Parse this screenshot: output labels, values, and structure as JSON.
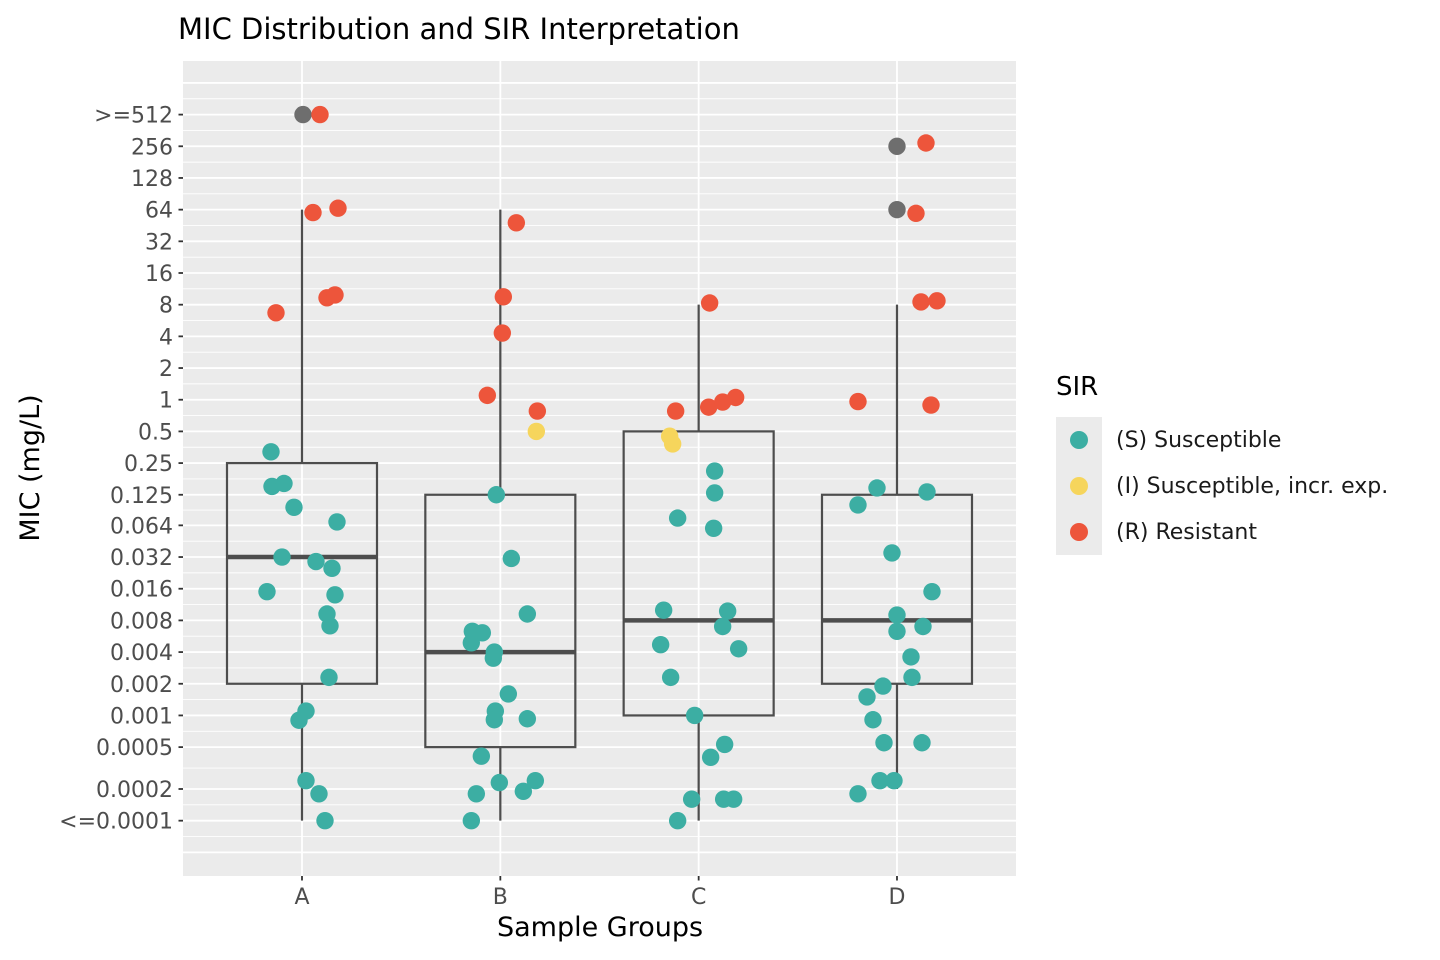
{
  "chart_data": {
    "type": "boxplot",
    "title": "MIC Distribution and SIR Interpretation",
    "xlabel": "Sample Groups",
    "ylabel": "MIC (mg/L)",
    "y_scale": "log2",
    "categories": [
      "A",
      "B",
      "C",
      "D"
    ],
    "y_ticks": [
      {
        "label": ">=512",
        "value": 512
      },
      {
        "label": "256",
        "value": 256
      },
      {
        "label": "128",
        "value": 128
      },
      {
        "label": "64",
        "value": 64
      },
      {
        "label": "32",
        "value": 32
      },
      {
        "label": "16",
        "value": 16
      },
      {
        "label": "8",
        "value": 8
      },
      {
        "label": "4",
        "value": 4
      },
      {
        "label": "2",
        "value": 2
      },
      {
        "label": "1",
        "value": 1
      },
      {
        "label": "0.5",
        "value": 0.5
      },
      {
        "label": "0.25",
        "value": 0.25
      },
      {
        "label": "0.125",
        "value": 0.125
      },
      {
        "label": "0.064",
        "value": 0.064
      },
      {
        "label": "0.032",
        "value": 0.032
      },
      {
        "label": "0.016",
        "value": 0.016
      },
      {
        "label": "0.008",
        "value": 0.008
      },
      {
        "label": "0.004",
        "value": 0.004
      },
      {
        "label": "0.002",
        "value": 0.002
      },
      {
        "label": "0.001",
        "value": 0.001
      },
      {
        "label": "0.0005",
        "value": 0.0005
      },
      {
        "label": "0.0002",
        "value": 0.0002
      },
      {
        "label": "<=0.0001",
        "value": 0.0001
      }
    ],
    "sir_colors": {
      "S": "#3CAEA3",
      "I": "#F6D55C",
      "R": "#ED553B",
      "NA": "#6E6E6E"
    },
    "style_colors": {
      "panel_bg": "#EBEBEB",
      "grid": "#FFFFFF",
      "box_stroke": "#4D4D4D",
      "axis_text": "#4D4D4D",
      "tick_mark": "#333333"
    },
    "groups": [
      {
        "name": "A",
        "box": {
          "whisker_low": 0.0001,
          "q1": 0.002,
          "median": 0.032,
          "q3": 0.25,
          "whisker_high": 64
        },
        "points": [
          {
            "mic": 512,
            "sir": "NA",
            "dx": 1
          },
          {
            "mic": 512,
            "sir": "R",
            "dx": 18
          },
          {
            "mic": 60,
            "sir": "R",
            "dx": 11
          },
          {
            "mic": 66,
            "sir": "R",
            "dx": 36
          },
          {
            "mic": 9.3,
            "sir": "R",
            "dx": 25
          },
          {
            "mic": 9.9,
            "sir": "R",
            "dx": 33
          },
          {
            "mic": 6.7,
            "sir": "R",
            "dx": -26
          },
          {
            "mic": 0.32,
            "sir": "S",
            "dx": -31
          },
          {
            "mic": 0.15,
            "sir": "S",
            "dx": -30
          },
          {
            "mic": 0.16,
            "sir": "S",
            "dx": -18
          },
          {
            "mic": 0.095,
            "sir": "S",
            "dx": -8
          },
          {
            "mic": 0.069,
            "sir": "S",
            "dx": 35
          },
          {
            "mic": 0.032,
            "sir": "S",
            "dx": -20
          },
          {
            "mic": 0.029,
            "sir": "S",
            "dx": 14
          },
          {
            "mic": 0.025,
            "sir": "S",
            "dx": 30
          },
          {
            "mic": 0.015,
            "sir": "S",
            "dx": -35
          },
          {
            "mic": 0.014,
            "sir": "S",
            "dx": 33
          },
          {
            "mic": 0.0092,
            "sir": "S",
            "dx": 25
          },
          {
            "mic": 0.0071,
            "sir": "S",
            "dx": 28
          },
          {
            "mic": 0.0023,
            "sir": "S",
            "dx": 27
          },
          {
            "mic": 0.0011,
            "sir": "S",
            "dx": 4
          },
          {
            "mic": 0.0009,
            "sir": "S",
            "dx": -3
          },
          {
            "mic": 0.00024,
            "sir": "S",
            "dx": 4
          },
          {
            "mic": 0.00018,
            "sir": "S",
            "dx": 17
          },
          {
            "mic": 0.0001,
            "sir": "S",
            "dx": 23
          }
        ]
      },
      {
        "name": "B",
        "box": {
          "whisker_low": 0.0001,
          "q1": 0.0005,
          "median": 0.004,
          "q3": 0.125,
          "whisker_high": 64
        },
        "points": [
          {
            "mic": 48,
            "sir": "R",
            "dx": 16
          },
          {
            "mic": 9.5,
            "sir": "R",
            "dx": 3
          },
          {
            "mic": 4.3,
            "sir": "R",
            "dx": 2
          },
          {
            "mic": 1.1,
            "sir": "R",
            "dx": -13
          },
          {
            "mic": 0.78,
            "sir": "R",
            "dx": 37
          },
          {
            "mic": 0.5,
            "sir": "I",
            "dx": 36
          },
          {
            "mic": 0.125,
            "sir": "S",
            "dx": -4
          },
          {
            "mic": 0.031,
            "sir": "S",
            "dx": 11
          },
          {
            "mic": 0.0092,
            "sir": "S",
            "dx": 27
          },
          {
            "mic": 0.0063,
            "sir": "S",
            "dx": -28
          },
          {
            "mic": 0.0061,
            "sir": "S",
            "dx": -18
          },
          {
            "mic": 0.0049,
            "sir": "S",
            "dx": -29
          },
          {
            "mic": 0.004,
            "sir": "S",
            "dx": -6
          },
          {
            "mic": 0.0035,
            "sir": "S",
            "dx": -7
          },
          {
            "mic": 0.0016,
            "sir": "S",
            "dx": 8
          },
          {
            "mic": 0.0011,
            "sir": "S",
            "dx": -5
          },
          {
            "mic": 0.00091,
            "sir": "S",
            "dx": -6
          },
          {
            "mic": 0.00093,
            "sir": "S",
            "dx": 27
          },
          {
            "mic": 0.00041,
            "sir": "S",
            "dx": -19
          },
          {
            "mic": 0.00023,
            "sir": "S",
            "dx": -1
          },
          {
            "mic": 0.00024,
            "sir": "S",
            "dx": 35
          },
          {
            "mic": 0.00019,
            "sir": "S",
            "dx": 23
          },
          {
            "mic": 0.00018,
            "sir": "S",
            "dx": -24
          },
          {
            "mic": 0.0001,
            "sir": "S",
            "dx": -29
          }
        ]
      },
      {
        "name": "C",
        "box": {
          "whisker_low": 0.0001,
          "q1": 0.001,
          "median": 0.008,
          "q3": 0.5,
          "whisker_high": 8
        },
        "points": [
          {
            "mic": 8.3,
            "sir": "R",
            "dx": 11
          },
          {
            "mic": 0.78,
            "sir": "R",
            "dx": -23
          },
          {
            "mic": 0.85,
            "sir": "R",
            "dx": 10
          },
          {
            "mic": 0.95,
            "sir": "R",
            "dx": 24
          },
          {
            "mic": 1.05,
            "sir": "R",
            "dx": 37
          },
          {
            "mic": 0.45,
            "sir": "I",
            "dx": -29
          },
          {
            "mic": 0.38,
            "sir": "I",
            "dx": -26
          },
          {
            "mic": 0.21,
            "sir": "S",
            "dx": 16
          },
          {
            "mic": 0.13,
            "sir": "S",
            "dx": 16
          },
          {
            "mic": 0.075,
            "sir": "S",
            "dx": -21
          },
          {
            "mic": 0.06,
            "sir": "S",
            "dx": 15
          },
          {
            "mic": 0.01,
            "sir": "S",
            "dx": -35
          },
          {
            "mic": 0.0098,
            "sir": "S",
            "dx": 29
          },
          {
            "mic": 0.007,
            "sir": "S",
            "dx": 24
          },
          {
            "mic": 0.0047,
            "sir": "S",
            "dx": -38
          },
          {
            "mic": 0.0043,
            "sir": "S",
            "dx": 40
          },
          {
            "mic": 0.0023,
            "sir": "S",
            "dx": -28
          },
          {
            "mic": 0.001,
            "sir": "S",
            "dx": -4
          },
          {
            "mic": 0.00053,
            "sir": "S",
            "dx": 26
          },
          {
            "mic": 0.0004,
            "sir": "S",
            "dx": 12
          },
          {
            "mic": 0.00016,
            "sir": "S",
            "dx": -7
          },
          {
            "mic": 0.00016,
            "sir": "S",
            "dx": 25
          },
          {
            "mic": 0.00016,
            "sir": "S",
            "dx": 35
          },
          {
            "mic": 0.0001,
            "sir": "S",
            "dx": -21
          }
        ]
      },
      {
        "name": "D",
        "box": {
          "whisker_low": 0.0002,
          "q1": 0.002,
          "median": 0.008,
          "q3": 0.125,
          "whisker_high": 8
        },
        "points": [
          {
            "mic": 256,
            "sir": "NA",
            "dx": 0
          },
          {
            "mic": 275,
            "sir": "R",
            "dx": 29
          },
          {
            "mic": 64,
            "sir": "NA",
            "dx": 0
          },
          {
            "mic": 59,
            "sir": "R",
            "dx": 19
          },
          {
            "mic": 8.5,
            "sir": "R",
            "dx": 24
          },
          {
            "mic": 8.7,
            "sir": "R",
            "dx": 40
          },
          {
            "mic": 0.96,
            "sir": "R",
            "dx": -39
          },
          {
            "mic": 0.89,
            "sir": "R",
            "dx": 34
          },
          {
            "mic": 0.145,
            "sir": "S",
            "dx": -20
          },
          {
            "mic": 0.133,
            "sir": "S",
            "dx": 30
          },
          {
            "mic": 0.1,
            "sir": "S",
            "dx": -39
          },
          {
            "mic": 0.035,
            "sir": "S",
            "dx": -5
          },
          {
            "mic": 0.015,
            "sir": "S",
            "dx": 35
          },
          {
            "mic": 0.009,
            "sir": "S",
            "dx": 0
          },
          {
            "mic": 0.007,
            "sir": "S",
            "dx": 26
          },
          {
            "mic": 0.0063,
            "sir": "S",
            "dx": 0
          },
          {
            "mic": 0.0036,
            "sir": "S",
            "dx": 14
          },
          {
            "mic": 0.0023,
            "sir": "S",
            "dx": 15
          },
          {
            "mic": 0.0019,
            "sir": "S",
            "dx": -14
          },
          {
            "mic": 0.0015,
            "sir": "S",
            "dx": -30
          },
          {
            "mic": 0.00091,
            "sir": "S",
            "dx": -24
          },
          {
            "mic": 0.00055,
            "sir": "S",
            "dx": -13
          },
          {
            "mic": 0.00055,
            "sir": "S",
            "dx": 25
          },
          {
            "mic": 0.00024,
            "sir": "S",
            "dx": -17
          },
          {
            "mic": 0.00024,
            "sir": "S",
            "dx": -3
          },
          {
            "mic": 0.00018,
            "sir": "S",
            "dx": -39
          }
        ]
      }
    ]
  },
  "legend": {
    "title": "SIR",
    "items": [
      {
        "label": "(S) Susceptible",
        "sir": "S",
        "color": "#3CAEA3"
      },
      {
        "label": "(I) Susceptible, incr. exp.",
        "sir": "I",
        "color": "#F6D55C"
      },
      {
        "label": "(R) Resistant",
        "sir": "R",
        "color": "#ED553B"
      }
    ]
  }
}
